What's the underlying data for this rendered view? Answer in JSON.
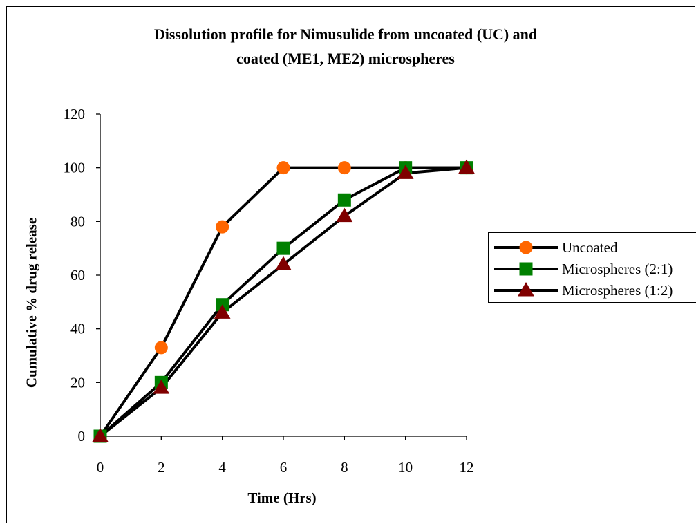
{
  "chart_data": {
    "type": "line",
    "title": "Dissolution profile for Nimusulide from uncoated (UC) and coated (ME1, ME2) microspheres",
    "title_lines": [
      "Dissolution profile for Nimusulide from uncoated (UC) and",
      "coated (ME1, ME2) microspheres"
    ],
    "xlabel": "Time (Hrs)",
    "ylabel": "Cumulative % drug release",
    "x": [
      0,
      2,
      4,
      6,
      8,
      10,
      12
    ],
    "xlim": [
      0,
      12
    ],
    "ylim": [
      0,
      120
    ],
    "xticks": [
      "0",
      "2",
      "4",
      "6",
      "8",
      "10",
      "12"
    ],
    "yticks": [
      "0",
      "20",
      "40",
      "60",
      "80",
      "100",
      "120"
    ],
    "grid": false,
    "legend_position": "right",
    "series": [
      {
        "name": "Uncoated",
        "values": [
          0,
          33,
          78,
          100,
          100,
          100,
          100
        ],
        "marker": "circle",
        "color": "#FF6600"
      },
      {
        "name": "Microspheres (2:1)",
        "values": [
          0,
          20,
          49,
          70,
          88,
          100,
          100
        ],
        "marker": "square",
        "color": "#008000"
      },
      {
        "name": "Microspheres (1:2)",
        "values": [
          0,
          18,
          46,
          64,
          82,
          98,
          100
        ],
        "marker": "triangle",
        "color": "#800000"
      }
    ]
  }
}
